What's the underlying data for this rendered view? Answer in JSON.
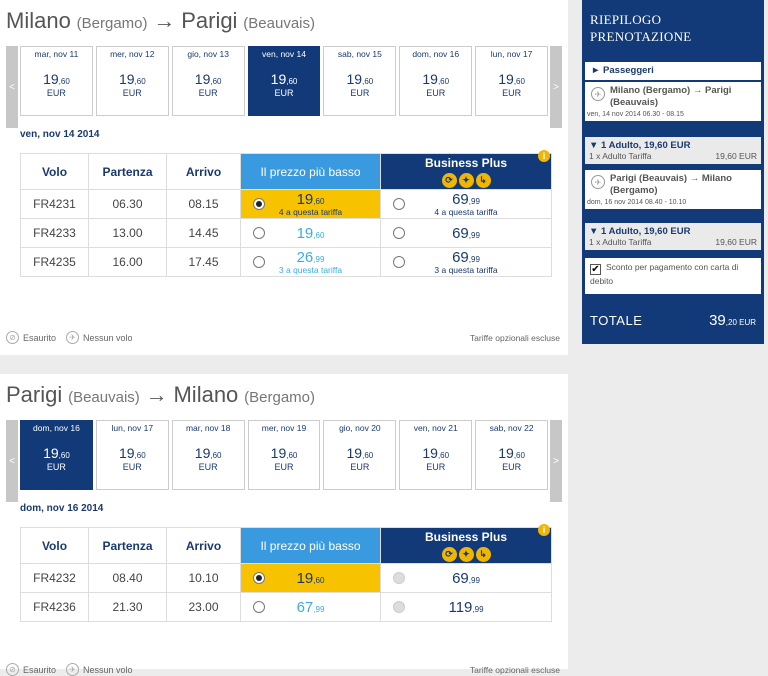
{
  "outbound": {
    "from": "Milano",
    "from_sub": "(Bergamo)",
    "arrow": "→",
    "to": "Parigi",
    "to_sub": "(Beauvais)",
    "dates": [
      {
        "label": "mar, nov 11",
        "price_int": "19",
        "price_dec": ",60",
        "currency": "EUR",
        "selected": false
      },
      {
        "label": "mer, nov 12",
        "price_int": "19",
        "price_dec": ",60",
        "currency": "EUR",
        "selected": false
      },
      {
        "label": "gio, nov 13",
        "price_int": "19",
        "price_dec": ",60",
        "currency": "EUR",
        "selected": false
      },
      {
        "label": "ven, nov 14",
        "price_int": "19",
        "price_dec": ",60",
        "currency": "EUR",
        "selected": true
      },
      {
        "label": "sab, nov 15",
        "price_int": "19",
        "price_dec": ",60",
        "currency": "EUR",
        "selected": false
      },
      {
        "label": "dom, nov 16",
        "price_int": "19",
        "price_dec": ",60",
        "currency": "EUR",
        "selected": false
      },
      {
        "label": "lun, nov 17",
        "price_int": "19",
        "price_dec": ",60",
        "currency": "EUR",
        "selected": false
      }
    ],
    "day_label": "ven, nov 14 2014",
    "flights": [
      {
        "code": "FR4231",
        "dep": "06.30",
        "arr": "08.15",
        "low_int": "19",
        "low_dec": ",60",
        "low_note": "4 a questa tariffa",
        "low_sel": true,
        "bp_int": "69",
        "bp_dec": ",99",
        "bp_note": "4 a questa tariffa"
      },
      {
        "code": "FR4233",
        "dep": "13.00",
        "arr": "14.45",
        "low_int": "19",
        "low_dec": ",60",
        "low_note": "",
        "low_sel": false,
        "bp_int": "69",
        "bp_dec": ",99",
        "bp_note": ""
      },
      {
        "code": "FR4235",
        "dep": "16.00",
        "arr": "17.45",
        "low_int": "26",
        "low_dec": ",99",
        "low_note": "3 a questa tariffa",
        "low_sel": false,
        "bp_int": "69",
        "bp_dec": ",99",
        "bp_note": "3 a questa tariffa"
      }
    ]
  },
  "return": {
    "from": "Parigi",
    "from_sub": "(Beauvais)",
    "arrow": "→",
    "to": "Milano",
    "to_sub": "(Bergamo)",
    "dates": [
      {
        "label": "dom, nov 16",
        "price_int": "19",
        "price_dec": ",60",
        "currency": "EUR",
        "selected": true
      },
      {
        "label": "lun, nov 17",
        "price_int": "19",
        "price_dec": ",60",
        "currency": "EUR",
        "selected": false
      },
      {
        "label": "mar, nov 18",
        "price_int": "19",
        "price_dec": ",60",
        "currency": "EUR",
        "selected": false
      },
      {
        "label": "mer, nov 19",
        "price_int": "19",
        "price_dec": ",60",
        "currency": "EUR",
        "selected": false
      },
      {
        "label": "gio, nov 20",
        "price_int": "19",
        "price_dec": ",60",
        "currency": "EUR",
        "selected": false
      },
      {
        "label": "ven, nov 21",
        "price_int": "19",
        "price_dec": ",60",
        "currency": "EUR",
        "selected": false
      },
      {
        "label": "sab, nov 22",
        "price_int": "19",
        "price_dec": ",60",
        "currency": "EUR",
        "selected": false
      }
    ],
    "day_label": "dom, nov 16 2014",
    "flights": [
      {
        "code": "FR4232",
        "dep": "08.40",
        "arr": "10.10",
        "low_int": "19",
        "low_dec": ",60",
        "low_note": "",
        "low_sel": true,
        "bp_int": "69",
        "bp_dec": ",99",
        "bp_note": ""
      },
      {
        "code": "FR4236",
        "dep": "21.30",
        "arr": "23.00",
        "low_int": "67",
        "low_dec": ",99",
        "low_note": "",
        "low_sel": false,
        "bp_int": "119",
        "bp_dec": ",99",
        "bp_note": ""
      }
    ]
  },
  "table_headers": {
    "flight": "Volo",
    "departure": "Partenza",
    "arrival": "Arrivo",
    "lowest": "Il prezzo più basso",
    "business": "Business Plus"
  },
  "legend": {
    "sold_out": "Esaurito",
    "no_flight": "Nessun volo",
    "optional": "Tariffe opzionali escluse"
  },
  "sidebar": {
    "title_line1": "RIEPILOGO",
    "title_line2": "PRENOTAZIONE",
    "passengers": "► Passeggeri",
    "leg1_route": "Milano (Bergamo) → Parigi (Beauvais)",
    "leg1_time": "ven, 14 nov 2014 06.30 - 08.15",
    "leg1_pax": "▼ 1 Adulto, 19,60 EUR",
    "leg1_fare_label": "1 x Adulto Tariffa",
    "leg1_fare_value": "19,60 EUR",
    "leg2_route": "Parigi (Beauvais) → Milano (Bergamo)",
    "leg2_time": "dom, 16 nov 2014 08.40 - 10.10",
    "leg2_pax": "▼ 1 Adulto, 19,60 EUR",
    "leg2_fare_label": "1 x Adulto Tariffa",
    "leg2_fare_value": "19,60 EUR",
    "card_discount": "Sconto per pagamento con carta di debito",
    "total_label": "TOTALE",
    "total_int": "39",
    "total_dec": ",20 EUR"
  }
}
